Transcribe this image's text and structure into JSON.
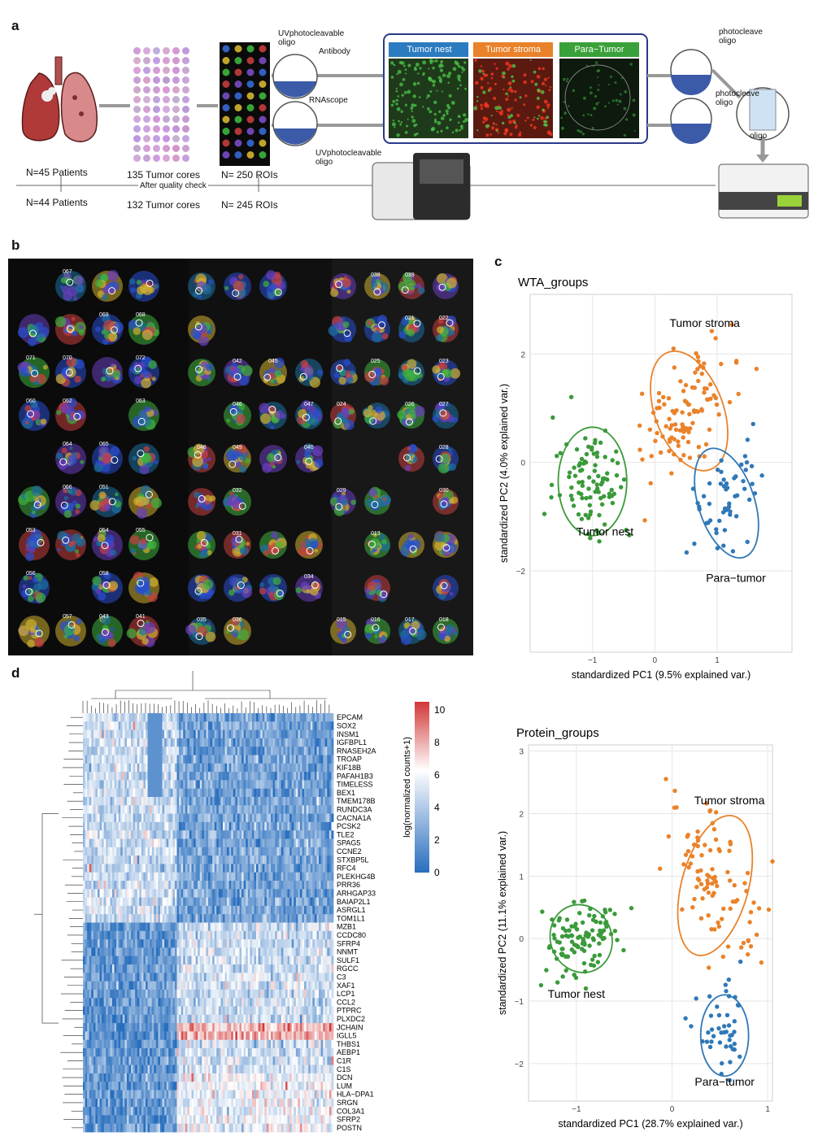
{
  "panels": {
    "a": "a",
    "b": "b",
    "c": "c",
    "d": "d"
  },
  "workflow": {
    "boxes": [
      {
        "label": "Tumor nest",
        "color": "#2b7bc0"
      },
      {
        "label": "Tumor stroma",
        "color": "#e9822a"
      },
      {
        "label": "Para−Tumor",
        "color": "#3aa13a"
      }
    ],
    "uv_oligo_top": "UVphotocleavable\noligo",
    "antibody": "Antibody",
    "rnascope": "RNAscope",
    "uv_oligo_bottom": "UVphotocleavable\noligo",
    "photocleave_top": "photocleave\noligo",
    "photocleave_bottom": "photocleave\noligo",
    "oligo": "oligo",
    "n_patients": "N=45 Patients",
    "n_patients_after": "N=44 Patients",
    "tumor_cores": "135 Tumor cores",
    "quality_check": "After quality check",
    "tumor_cores_after": "132 Tumor cores",
    "rois": "N= 250  ROIs",
    "rois_after": "N= 245  ROIs"
  },
  "roi_labels": [
    "067",
    "069",
    "068",
    "071",
    "070",
    "072",
    "060",
    "062",
    "063",
    "064",
    "065",
    "066",
    "051",
    "053",
    "054",
    "055",
    "056",
    "058",
    "057",
    "043",
    "041",
    "042",
    "045",
    "046",
    "047",
    "048",
    "049",
    "040",
    "032",
    "031",
    "034",
    "035",
    "036",
    "038",
    "039",
    "021",
    "022",
    "025",
    "023",
    "024",
    "026",
    "027",
    "028",
    "029",
    "030",
    "013",
    "015",
    "016",
    "017",
    "018",
    "020",
    "014",
    "012",
    "007",
    "008",
    "009",
    "010",
    "011",
    "002",
    "003",
    "001",
    "004",
    "005",
    "006",
    "065",
    "061",
    "052",
    "050",
    "044",
    "037",
    "033",
    "019"
  ],
  "pca_wta": {
    "chart_data": {
      "type": "scatter",
      "title": "WTA_groups",
      "xlabel": "standardized PC1 (9.5% explained var.)",
      "ylabel": "standardized PC2 (4.0% explained var.)",
      "xlim": [
        -2,
        2.2
      ],
      "ylim": [
        -3.5,
        3.1
      ],
      "xticks": [
        -1,
        0,
        1
      ],
      "yticks": [
        -2,
        0,
        2
      ],
      "series": [
        {
          "name": "Tumor nest",
          "color": "#3a9a3a",
          "center": [
            -1.0,
            -0.35
          ],
          "rx": 0.55,
          "ry": 1.0,
          "angle": 0
        },
        {
          "name": "Tumor stroma",
          "color": "#e9822a",
          "center": [
            0.55,
            0.95
          ],
          "rx": 0.55,
          "ry": 1.15,
          "angle": -20
        },
        {
          "name": "Para−tumor",
          "color": "#2f78b7",
          "center": [
            1.15,
            -0.75
          ],
          "rx": 0.45,
          "ry": 1.05,
          "angle": -18
        }
      ]
    }
  },
  "pca_protein": {
    "chart_data": {
      "type": "scatter",
      "title": "Protein_groups",
      "xlabel": "standardized PC1 (28.7% explained var.)",
      "ylabel": "standardized PC2 (11.1% explained var.)",
      "xlim": [
        -1.5,
        1.05
      ],
      "ylim": [
        -2.6,
        3.1
      ],
      "xticks": [
        -1,
        0,
        1
      ],
      "yticks": [
        -2,
        -1,
        0,
        1,
        2,
        3
      ],
      "series": [
        {
          "name": "Tumor nest",
          "color": "#3a9a3a",
          "center": [
            -0.95,
            0.0
          ],
          "rx": 0.32,
          "ry": 0.55,
          "angle": -20
        },
        {
          "name": "Tumor stroma",
          "color": "#e9822a",
          "center": [
            0.45,
            0.85
          ],
          "rx": 0.35,
          "ry": 1.15,
          "angle": 15
        },
        {
          "name": "Para−tumor",
          "color": "#2f78b7",
          "center": [
            0.55,
            -1.55
          ],
          "rx": 0.25,
          "ry": 0.65,
          "angle": 0
        }
      ]
    }
  },
  "heatmap": {
    "chart_data": {
      "type": "heatmap",
      "colorbar_label": "log(normalized counts+1)",
      "colorbar_ticks": [
        0,
        2,
        4,
        6,
        8,
        10
      ],
      "genes": [
        "EPCAM",
        "SOX2",
        "INSM1",
        "IGFBPL1",
        "RNASEH2A",
        "TROAP",
        "KIF18B",
        "PAFAH1B3",
        "TIMELESS",
        "BEX1",
        "TMEM178B",
        "RUNDC3A",
        "CACNA1A",
        "PCSK2",
        "TLE2",
        "SPAG5",
        "CCNE2",
        "STXBP5L",
        "RFC4",
        "PLEKHG4B",
        "PRR36",
        "ARHGAP33",
        "BAIAP2L1",
        "ASRGL1",
        "TOM1L1",
        "MZB1",
        "CCDC80",
        "SFRP4",
        "NNMT",
        "SULF1",
        "RGCC",
        "C3",
        "XAF1",
        "LCP1",
        "CCL2",
        "PTPRC",
        "PLXDC2",
        "JCHAIN",
        "IGLL5",
        "THBS1",
        "AEBP1",
        "C1R",
        "C1S",
        "DCN",
        "LUM",
        "HLA−DPA1",
        "SRGN",
        "COL3A1",
        "SFRP2",
        "POSTN"
      ]
    }
  }
}
